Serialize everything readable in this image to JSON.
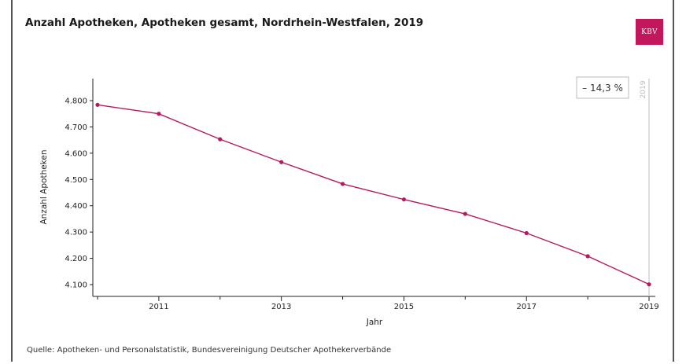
{
  "title": "Anzahl Apotheken, Apotheken gesamt, Nordrhein-Westfalen, 2019",
  "logo_text": "KBV",
  "source": "Quelle: Apotheken- und Personalstatistik, Bundesvereinigung Deutscher Apothekerverbände",
  "colors": {
    "line": "#b5195f",
    "logo_bg": "#c2185b",
    "axis": "#222222",
    "marker_line": "#cfcfcf"
  },
  "chart_data": {
    "type": "line",
    "title": "Anzahl Apotheken, Apotheken gesamt, Nordrhein-Westfalen, 2019",
    "xlabel": "Jahr",
    "ylabel": "Anzahl Apotheken",
    "x": [
      2010,
      2011,
      2012,
      2013,
      2014,
      2015,
      2016,
      2017,
      2018,
      2019
    ],
    "x_tick_labels": [
      "2011",
      "2013",
      "2015",
      "2017",
      "2019"
    ],
    "x_tick_values": [
      2011,
      2013,
      2015,
      2017,
      2019
    ],
    "series": [
      {
        "values": [
          4784,
          4750,
          4653,
          4566,
          4483,
          4424,
          4369,
          4296,
          4208,
          4101
        ]
      }
    ],
    "ylim": [
      4100,
      4800
    ],
    "y_ticks": [
      4100,
      4200,
      4300,
      4400,
      4500,
      4600,
      4700,
      4800
    ],
    "y_tick_labels": [
      "4.100",
      "4.200",
      "4.300",
      "4.400",
      "4.500",
      "4.600",
      "4.700",
      "4.800"
    ],
    "annotation": "– 14,3 %",
    "marker_label": "2019",
    "grid": false
  }
}
